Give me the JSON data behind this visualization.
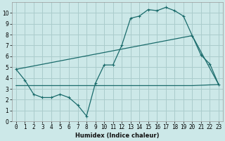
{
  "title": "",
  "xlabel": "Humidex (Indice chaleur)",
  "bg_color": "#cce8e8",
  "grid_color": "#aacccc",
  "line_color": "#1a6b6b",
  "xlim": [
    -0.5,
    23.5
  ],
  "ylim": [
    0,
    11
  ],
  "xticks": [
    0,
    1,
    2,
    3,
    4,
    5,
    6,
    7,
    8,
    9,
    10,
    11,
    12,
    13,
    14,
    15,
    16,
    17,
    18,
    19,
    20,
    21,
    22,
    23
  ],
  "yticks": [
    0,
    1,
    2,
    3,
    4,
    5,
    6,
    7,
    8,
    9,
    10
  ],
  "line1_x": [
    0,
    1,
    2,
    3,
    4,
    5,
    6,
    7,
    8,
    9,
    10,
    11,
    12,
    13,
    14,
    15,
    16,
    17,
    18,
    19,
    20,
    21,
    22,
    23
  ],
  "line1_y": [
    4.8,
    3.8,
    2.5,
    2.2,
    2.2,
    2.5,
    2.2,
    1.5,
    0.5,
    3.5,
    5.2,
    5.2,
    7.0,
    9.5,
    9.7,
    10.3,
    10.2,
    10.5,
    10.2,
    9.7,
    7.9,
    6.1,
    5.3,
    3.4
  ],
  "line2_x": [
    0,
    23
  ],
  "line2_y": [
    4.8,
    3.4
  ],
  "line3_x": [
    0,
    20,
    23
  ],
  "line3_y": [
    4.8,
    7.9,
    3.4
  ],
  "line4_x": [
    0,
    20,
    23
  ],
  "line4_y": [
    3.3,
    3.3,
    3.4
  ]
}
